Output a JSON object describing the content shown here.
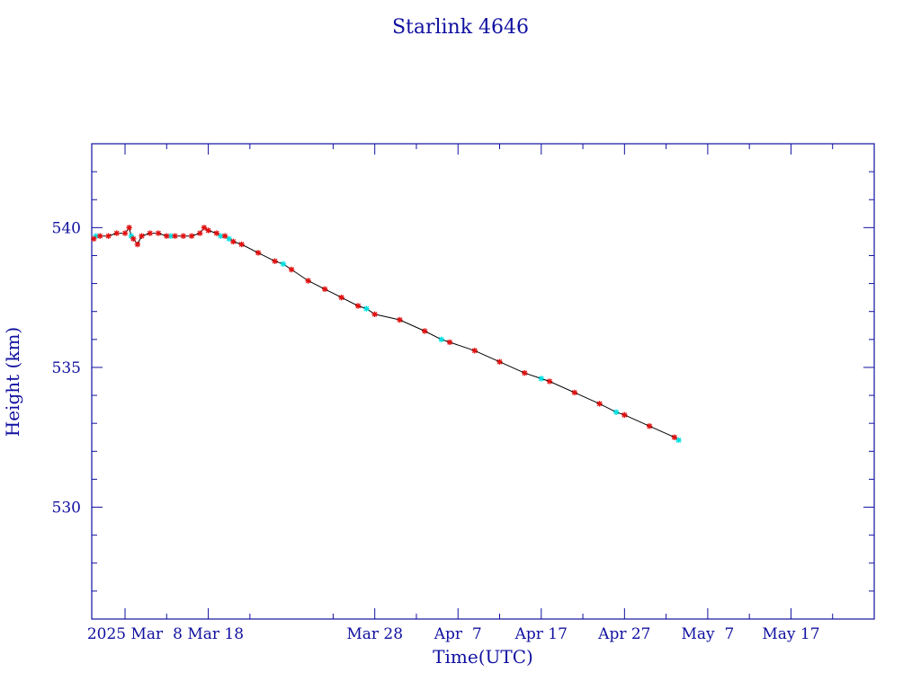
{
  "chart_data": {
    "type": "scatter",
    "title": "Starlink 4646",
    "xlabel": "Time(UTC)",
    "ylabel": "Height (km)",
    "x_unit": "date",
    "xlim": [
      "2025-02-22",
      "2025-05-27"
    ],
    "ylim": [
      526,
      543
    ],
    "x_ticks": [
      {
        "date": "2025-02-26",
        "label": "2025 Mar"
      },
      {
        "date": "2025-03-08",
        "label": "8 Mar 18"
      },
      {
        "date": "2025-03-28",
        "label": "Mar 28"
      },
      {
        "date": "2025-04-07",
        "label": "Apr  7"
      },
      {
        "date": "2025-04-17",
        "label": "Apr 17"
      },
      {
        "date": "2025-04-27",
        "label": "Apr 27"
      },
      {
        "date": "2025-05-07",
        "label": "May  7"
      },
      {
        "date": "2025-05-17",
        "label": "May 17"
      }
    ],
    "y_ticks": [
      540,
      535,
      530
    ],
    "y_major_step": 5,
    "y_minor_step": 1,
    "grid": false,
    "colors": {
      "axes": "#1010a0",
      "text": "#1010a0",
      "line": "#000000",
      "primary_marker": "#e01010",
      "secondary_marker": "#00e0e0"
    },
    "series": [
      {
        "marker": "red-star",
        "points": [
          [
            "2025-02-22T06:00",
            539.6
          ],
          [
            "2025-02-23T00:00",
            539.7
          ],
          [
            "2025-02-24T00:00",
            539.7
          ],
          [
            "2025-02-25T00:00",
            539.8
          ],
          [
            "2025-02-26T00:00",
            539.8
          ],
          [
            "2025-02-26T12:00",
            540.0
          ],
          [
            "2025-02-27T00:00",
            539.6
          ],
          [
            "2025-02-27T12:00",
            539.4
          ],
          [
            "2025-02-28T00:00",
            539.7
          ],
          [
            "2025-03-01T00:00",
            539.8
          ],
          [
            "2025-03-02T00:00",
            539.8
          ],
          [
            "2025-03-03T00:00",
            539.7
          ],
          [
            "2025-03-04T00:00",
            539.7
          ],
          [
            "2025-03-05T00:00",
            539.7
          ],
          [
            "2025-03-06T00:00",
            539.7
          ],
          [
            "2025-03-07T00:00",
            539.8
          ],
          [
            "2025-03-07T12:00",
            540.0
          ],
          [
            "2025-03-08T00:00",
            539.9
          ],
          [
            "2025-03-09T00:00",
            539.8
          ],
          [
            "2025-03-10T00:00",
            539.7
          ],
          [
            "2025-03-11T00:00",
            539.5
          ],
          [
            "2025-03-12T00:00",
            539.4
          ],
          [
            "2025-03-14T00:00",
            539.1
          ],
          [
            "2025-03-16T00:00",
            538.8
          ],
          [
            "2025-03-18T00:00",
            538.5
          ],
          [
            "2025-03-20T00:00",
            538.1
          ],
          [
            "2025-03-22T00:00",
            537.8
          ],
          [
            "2025-03-24T00:00",
            537.5
          ],
          [
            "2025-03-26T00:00",
            537.2
          ],
          [
            "2025-03-28T00:00",
            536.9
          ],
          [
            "2025-03-31T00:00",
            536.7
          ],
          [
            "2025-04-03T00:00",
            536.3
          ],
          [
            "2025-04-06T00:00",
            535.9
          ],
          [
            "2025-04-09T00:00",
            535.6
          ],
          [
            "2025-04-12T00:00",
            535.2
          ],
          [
            "2025-04-15T00:00",
            534.8
          ],
          [
            "2025-04-18T00:00",
            534.5
          ],
          [
            "2025-04-21T00:00",
            534.1
          ],
          [
            "2025-04-24T00:00",
            533.7
          ],
          [
            "2025-04-27T00:00",
            533.3
          ],
          [
            "2025-04-30T00:00",
            532.9
          ],
          [
            "2025-05-03T00:00",
            532.5
          ]
        ]
      },
      {
        "marker": "cyan-star",
        "points": [
          [
            "2025-02-22T12:00",
            539.7
          ],
          [
            "2025-02-26T18:00",
            539.7
          ],
          [
            "2025-03-03T12:00",
            539.7
          ],
          [
            "2025-03-09T12:00",
            539.7
          ],
          [
            "2025-03-10T12:00",
            539.6
          ],
          [
            "2025-03-17T00:00",
            538.7
          ],
          [
            "2025-03-27T00:00",
            537.1
          ],
          [
            "2025-04-05T00:00",
            536.0
          ],
          [
            "2025-04-17T00:00",
            534.6
          ],
          [
            "2025-04-26T00:00",
            533.4
          ],
          [
            "2025-05-03T12:00",
            532.4
          ]
        ]
      }
    ]
  }
}
